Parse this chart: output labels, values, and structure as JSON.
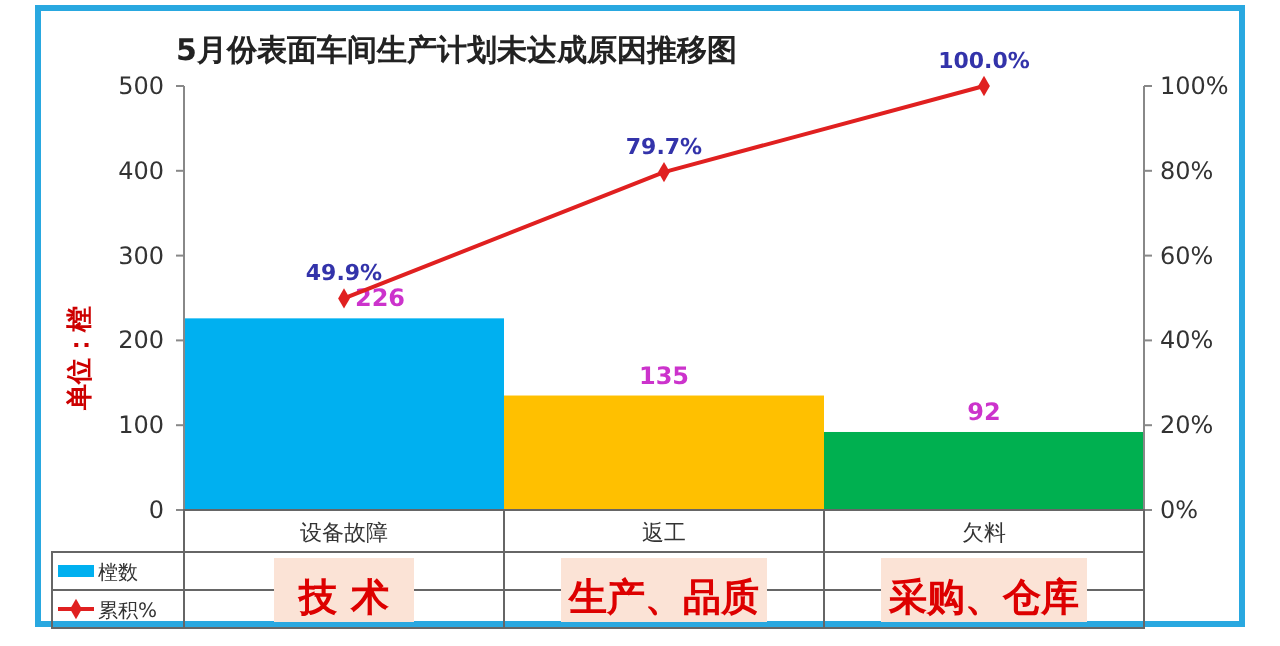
{
  "chart_data": {
    "type": "bar",
    "title": "5月份表面车间生产计划未达成原因推移图",
    "ylabel": "单位：樘",
    "categories": [
      "设备故障",
      "返工",
      "欠料"
    ],
    "series": [
      {
        "name": "樘数",
        "colors": [
          "#00b0f0",
          "#ffc000",
          "#00b050"
        ],
        "color": "#00b0f0",
        "values": [
          226,
          135,
          92
        ],
        "value_labels": [
          "226",
          "135",
          "92"
        ]
      },
      {
        "name": "累积%",
        "type": "line",
        "axis": "y2",
        "color": "#e02020",
        "values": [
          49.9,
          79.7,
          100.0
        ],
        "value_labels": [
          "49.9%",
          "79.7%",
          "100.0%"
        ],
        "marker": "diamond"
      }
    ],
    "ylim": [
      0,
      500
    ],
    "yticks": [
      0,
      100,
      200,
      300,
      400,
      500
    ],
    "y2lim": [
      0,
      100
    ],
    "y2ticks": [
      {
        "value": 0,
        "label": "0%"
      },
      {
        "value": 20,
        "label": "20%"
      },
      {
        "value": 40,
        "label": "40%"
      },
      {
        "value": 60,
        "label": "60%"
      },
      {
        "value": 80,
        "label": "80%"
      },
      {
        "value": 100,
        "label": "100%"
      }
    ],
    "legend": "bottom left",
    "grid": false,
    "annotations": [
      "技 术",
      "生产、品质",
      "采购、仓库"
    ]
  }
}
